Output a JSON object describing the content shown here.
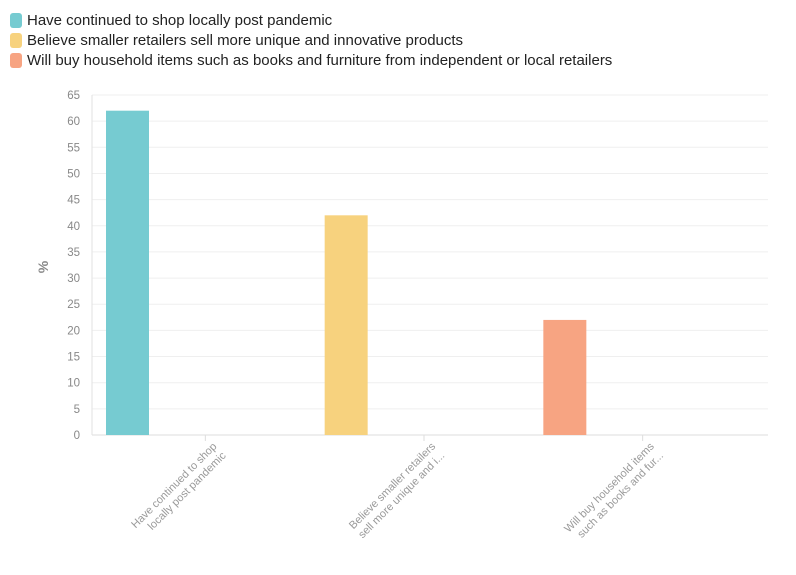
{
  "legend": [
    {
      "label": "Have continued to shop locally post pandemic",
      "color": "#76cbd1"
    },
    {
      "label": "Believe smaller retailers sell more unique and innovative products",
      "color": "#f7d27e"
    },
    {
      "label": "Will buy household items such as books and furniture from independent or local retailers",
      "color": "#f7a482"
    }
  ],
  "chart_data": {
    "type": "bar",
    "categories": [
      "Have continued to shop locally post pandemic",
      "Believe smaller retailers sell more unique and innovative products",
      "Will buy household items such as books and furniture from independent or local retailers"
    ],
    "category_tick_labels": [
      [
        "Have continued to shop",
        "locally post pandemic"
      ],
      [
        "Believe smaller retailers",
        "sell more unique and i..."
      ],
      [
        "Will buy household items",
        "such as books and fur..."
      ]
    ],
    "values": [
      62,
      42,
      22
    ],
    "colors": [
      "#76cbd1",
      "#f7d27e",
      "#f7a482"
    ],
    "ylabel": "%",
    "ylim": [
      0,
      65
    ],
    "yticks": [
      0,
      5,
      10,
      15,
      20,
      25,
      30,
      35,
      40,
      45,
      50,
      55,
      60,
      65
    ],
    "grid": true
  }
}
